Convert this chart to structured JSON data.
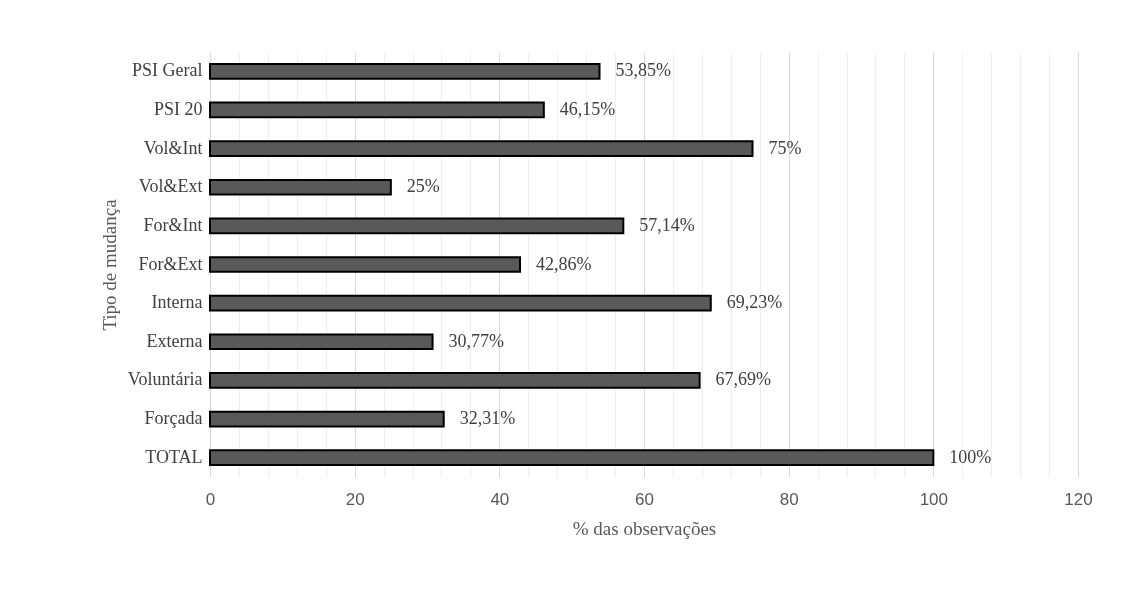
{
  "chart_data": {
    "type": "bar",
    "orientation": "horizontal",
    "categories": [
      "PSI Geral",
      "PSI 20",
      "Vol&Int",
      "Vol&Ext",
      "For&Int",
      "For&Ext",
      "Interna",
      "Externa",
      "Voluntária",
      "Forçada",
      "TOTAL"
    ],
    "values": [
      53.85,
      46.15,
      75,
      25,
      57.14,
      42.86,
      69.23,
      30.77,
      67.69,
      32.31,
      100
    ],
    "value_labels": [
      "53,85%",
      "46,15%",
      "75%",
      "25%",
      "57,14%",
      "42,86%",
      "69,23%",
      "30,77%",
      "67,69%",
      "32,31%",
      "100%"
    ],
    "color": "#595959",
    "xlabel": "% das observações",
    "ylabel": "Tipo de mudança",
    "xlim": [
      0,
      120
    ],
    "xticks": [
      0,
      {
        "value": 4,
        "label": null
      },
      {
        "value": 8,
        "label": null
      },
      {
        "value": 12,
        "label": null
      },
      {
        "value": 16,
        "label": null
      },
      20,
      {
        "value": 24,
        "label": null
      },
      {
        "value": 28,
        "label": null
      },
      {
        "value": 32,
        "label": null
      },
      {
        "value": 36,
        "label": null
      },
      40,
      {
        "value": 44,
        "label": null
      },
      {
        "value": 48,
        "label": null
      },
      {
        "value": 52,
        "label": null
      },
      {
        "value": 56,
        "label": null
      },
      60,
      {
        "value": 64,
        "label": null
      },
      {
        "value": 68,
        "label": null
      },
      {
        "value": 72,
        "label": null
      },
      {
        "value": 76,
        "label": null
      },
      80,
      {
        "value": 84,
        "label": null
      },
      {
        "value": 88,
        "label": null
      },
      {
        "value": 92,
        "label": null
      },
      {
        "value": 96,
        "label": null
      },
      100,
      {
        "value": 104,
        "label": null
      },
      {
        "value": 108,
        "label": null
      },
      {
        "value": 112,
        "label": null
      },
      {
        "value": 116,
        "label": null
      },
      120
    ],
    "grid": true
  }
}
